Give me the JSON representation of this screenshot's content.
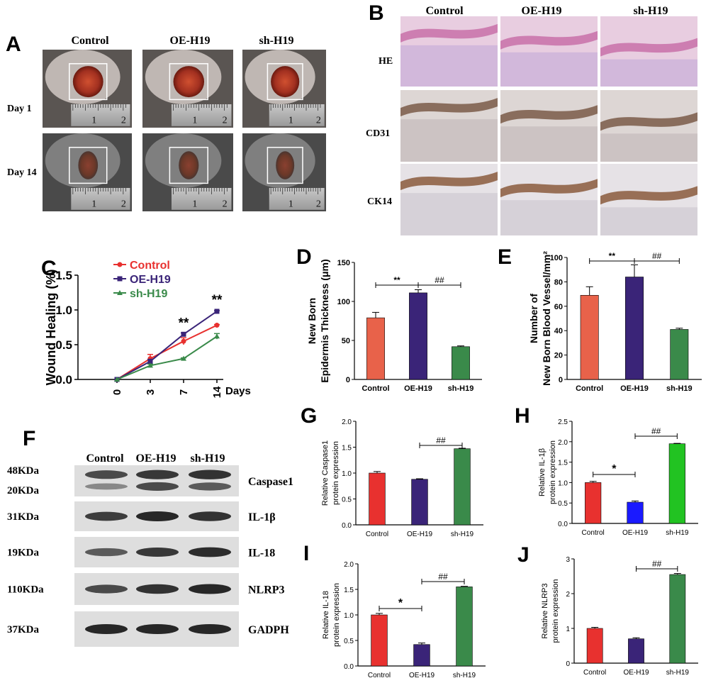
{
  "colors": {
    "control_red": "#e8312f",
    "oe_purple": "#3a2478",
    "sh_green": "#3a8a4a",
    "salmon": "#e8624a",
    "bright_blue": "#1a1aff",
    "bright_green": "#22c322"
  },
  "panel_a": {
    "letter": "A",
    "columns": [
      "Control",
      "OE-H19",
      "sh-H19"
    ],
    "rows": [
      "Day 1",
      "Day 14"
    ]
  },
  "panel_b": {
    "letter": "B",
    "columns": [
      "Control",
      "OE-H19",
      "sh-H19"
    ],
    "rows": [
      "HE",
      "CD31",
      "CK14"
    ]
  },
  "panel_f": {
    "letter": "F",
    "columns": [
      "Control",
      "OE-H19",
      "sh-H19"
    ],
    "blots": [
      {
        "mw": "48KDa",
        "mw2": "20KDa",
        "protein": "Caspase1"
      },
      {
        "mw": "31KDa",
        "protein": "IL-1β"
      },
      {
        "mw": "19KDa",
        "protein": "IL-18"
      },
      {
        "mw": "110KDa",
        "protein": "NLRP3"
      },
      {
        "mw": "37KDa",
        "protein": "GADPH"
      }
    ]
  },
  "chart_data": [
    {
      "id": "C",
      "letter": "C",
      "type": "line",
      "ylabel": "Wound Healing (%)",
      "xlabel": "Days",
      "x": [
        0,
        3,
        7,
        14
      ],
      "ylim": [
        0,
        1.5
      ],
      "yticks": [
        "0.0",
        "0.5",
        "1.0",
        "1.5"
      ],
      "series": [
        {
          "name": "Control",
          "values": [
            0,
            0.3,
            0.55,
            0.78
          ],
          "errors": [
            0,
            0.06,
            0.05,
            0.01
          ]
        },
        {
          "name": "OE-H19",
          "values": [
            0,
            0.26,
            0.65,
            0.98
          ],
          "errors": [
            0,
            0.03,
            0.02,
            0.01
          ]
        },
        {
          "name": "sh-H19",
          "values": [
            0,
            0.2,
            0.3,
            0.62
          ],
          "errors": [
            0,
            0.02,
            0.01,
            0.04
          ]
        }
      ],
      "annotations": [
        {
          "x": 7,
          "text": "**"
        },
        {
          "x": 14,
          "text": "**"
        }
      ]
    },
    {
      "id": "D",
      "letter": "D",
      "type": "bar",
      "ylabel_line1": "New Born",
      "ylabel_line2": "Epidermis Thickness (μm)",
      "categories": [
        "Control",
        "OE-H19",
        "sh-H19"
      ],
      "values": [
        79,
        111,
        42
      ],
      "errors": [
        7,
        4,
        1
      ],
      "ylim": [
        0,
        150
      ],
      "yticks": [
        "0",
        "50",
        "100",
        "150"
      ],
      "sig": [
        {
          "from": 0,
          "to": 1,
          "text": "**"
        },
        {
          "from": 1,
          "to": 2,
          "text": "##"
        }
      ]
    },
    {
      "id": "E",
      "letter": "E",
      "type": "bar",
      "ylabel_line1": "Number of",
      "ylabel_line2": "New Born Blood Vessel/mm²",
      "categories": [
        "Control",
        "OE-H19",
        "sh-H19"
      ],
      "values": [
        69,
        84,
        41
      ],
      "errors": [
        7,
        10,
        1
      ],
      "ylim": [
        0,
        100
      ],
      "yticks": [
        "0",
        "20",
        "40",
        "60",
        "80",
        "100"
      ],
      "sig": [
        {
          "from": 0,
          "to": 1,
          "text": "**"
        },
        {
          "from": 1,
          "to": 2,
          "text": "##"
        }
      ]
    },
    {
      "id": "G",
      "letter": "G",
      "type": "bar",
      "ylabel_line1": "Relative Caspase1",
      "ylabel_line2": "protein expression",
      "categories": [
        "Control",
        "OE-H19",
        "sh-H19"
      ],
      "values": [
        1.0,
        0.88,
        1.47
      ],
      "errors": [
        0.03,
        0.01,
        0.01
      ],
      "ylim": [
        0,
        2.0
      ],
      "yticks": [
        "0.0",
        "0.5",
        "1.0",
        "1.5",
        "2.0"
      ],
      "sig": [
        {
          "from": 1,
          "to": 2,
          "text": "##"
        }
      ]
    },
    {
      "id": "H",
      "letter": "H",
      "type": "bar",
      "ylabel_line1": "Relative IL-1β",
      "ylabel_line2": "protein expression",
      "categories": [
        "Control",
        "OE-H19",
        "sh-H19"
      ],
      "values": [
        1.0,
        0.52,
        1.95
      ],
      "errors": [
        0.03,
        0.03,
        0.01
      ],
      "ylim": [
        0,
        2.5
      ],
      "yticks": [
        "0.0",
        "0.5",
        "1.0",
        "1.5",
        "2.0",
        "2.5"
      ],
      "sig": [
        {
          "from": 0,
          "to": 1,
          "text": "*"
        },
        {
          "from": 1,
          "to": 2,
          "text": "##"
        }
      ]
    },
    {
      "id": "I",
      "letter": "I",
      "type": "bar",
      "ylabel_line1": "Relative IL-18",
      "ylabel_line2": "protein expression",
      "categories": [
        "Control",
        "OE-H19",
        "sh-H19"
      ],
      "values": [
        1.0,
        0.42,
        1.55
      ],
      "errors": [
        0.03,
        0.03,
        0.01
      ],
      "ylim": [
        0,
        2.0
      ],
      "yticks": [
        "0.0",
        "0.5",
        "1.0",
        "1.5",
        "2.0"
      ],
      "sig": [
        {
          "from": 0,
          "to": 1,
          "text": "*"
        },
        {
          "from": 1,
          "to": 2,
          "text": "##"
        }
      ]
    },
    {
      "id": "J",
      "letter": "J",
      "type": "bar",
      "ylabel_line1": "Relative NLRP3",
      "ylabel_line2": "protein expression",
      "categories": [
        "Control",
        "OE-H19",
        "sh-H19"
      ],
      "values": [
        1.0,
        0.7,
        2.55
      ],
      "errors": [
        0.03,
        0.03,
        0.03
      ],
      "ylim": [
        0,
        3
      ],
      "yticks": [
        "0",
        "1",
        "2",
        "3"
      ],
      "sig": [
        {
          "from": 1,
          "to": 2,
          "text": "##"
        }
      ]
    }
  ]
}
